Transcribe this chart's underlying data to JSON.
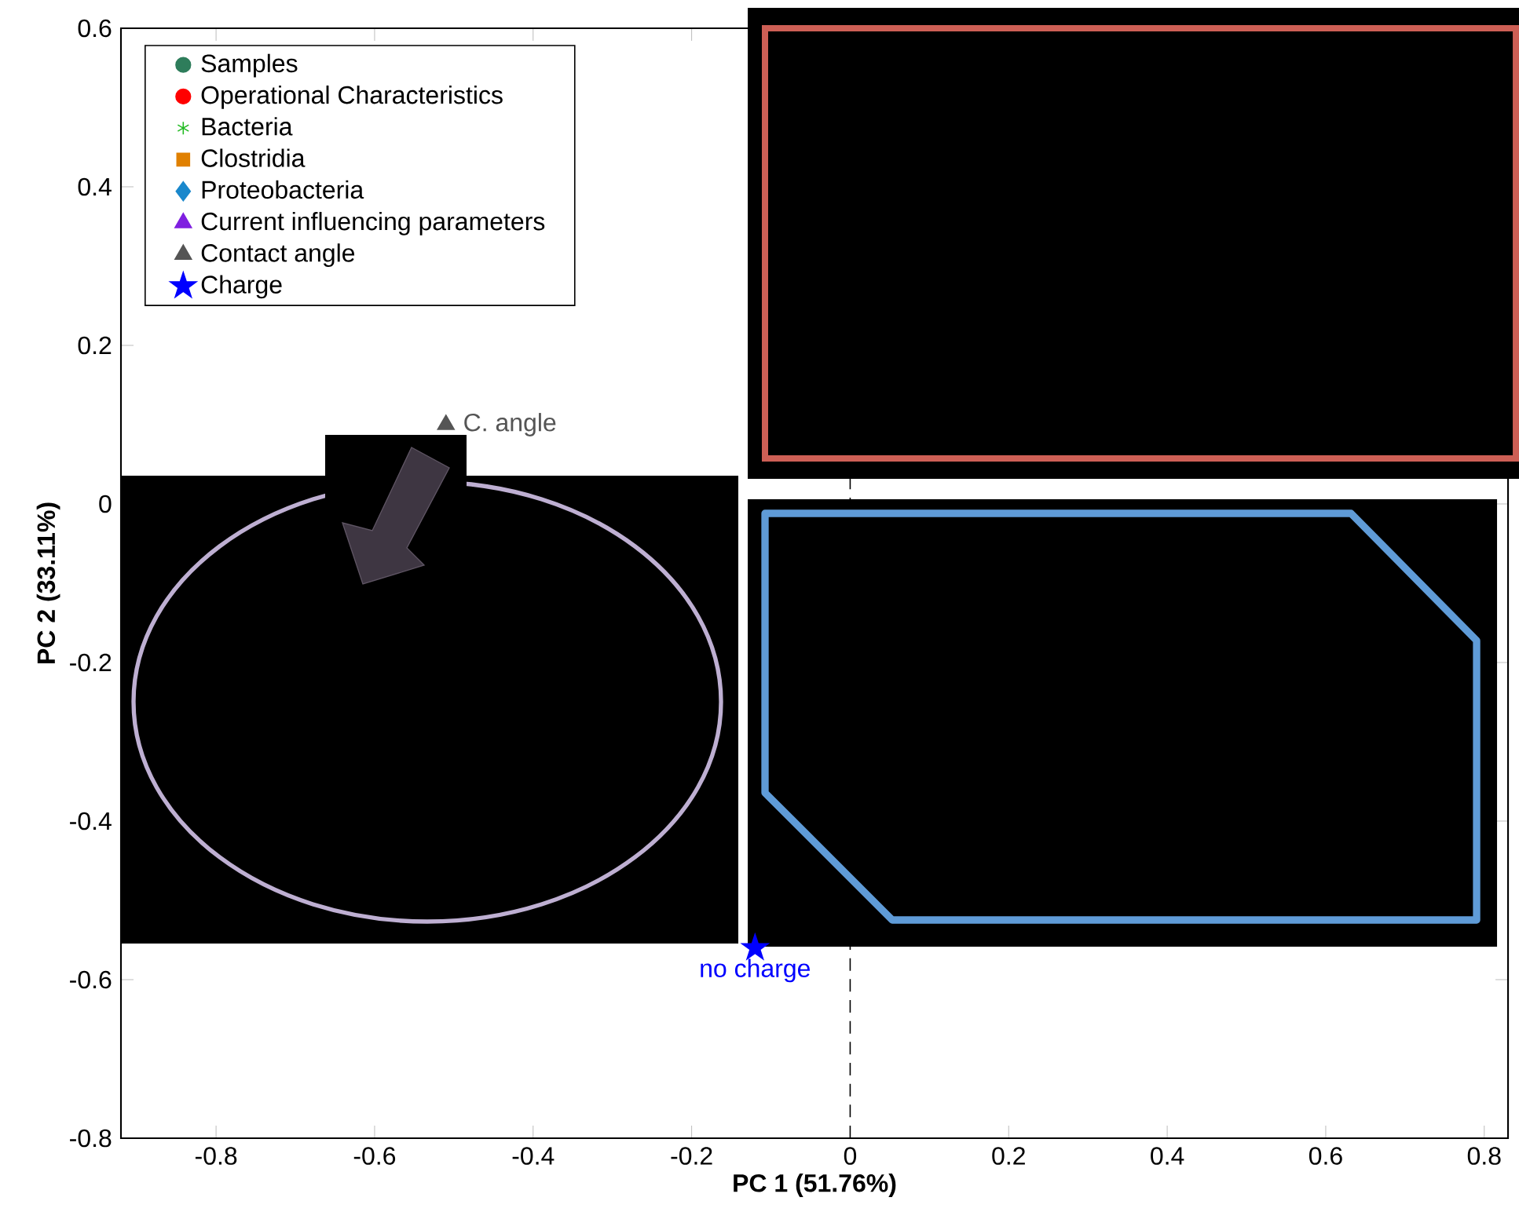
{
  "chart_data": {
    "type": "scatter",
    "xlabel": "PC 1 (51.76%)",
    "ylabel": "PC 2 (33.11%)",
    "xlim": [
      -0.92,
      0.83
    ],
    "ylim": [
      -0.8,
      0.6
    ],
    "xticks": [
      -0.8,
      -0.6,
      -0.4,
      -0.2,
      0,
      0.2,
      0.4,
      0.6,
      0.8
    ],
    "yticks": [
      -0.8,
      -0.6,
      -0.4,
      -0.2,
      0,
      0.2,
      0.4,
      0.6
    ],
    "legend": "top left",
    "ref_lines": [
      {
        "axis": "x",
        "value": 0,
        "color": "#000000",
        "line_style": "dashed"
      }
    ],
    "series": [
      {
        "name": "Samples",
        "color": "#2e7d5b",
        "marker": "circle"
      },
      {
        "name": "Operational Characteristics",
        "color": "#ff0000",
        "marker": "circle"
      },
      {
        "name": "Bacteria",
        "color": "#22bb22",
        "marker": "cross"
      },
      {
        "name": "Clostridia",
        "color": "#e08000",
        "marker": "square"
      },
      {
        "name": "Proteobacteria",
        "color": "#1a88cc",
        "marker": "diamond"
      },
      {
        "name": "Current influencing parameters",
        "color": "#7f1fe0",
        "marker": "triangle"
      },
      {
        "name": "Contact angle",
        "color": "#555555",
        "marker": "triangle",
        "x": [
          -0.51
        ],
        "values": [
          0.1
        ],
        "value_labels": [
          "C. angle"
        ]
      },
      {
        "name": "Charge",
        "color": "#0000ff",
        "marker": "star",
        "x": [
          -0.12
        ],
        "values": [
          -0.56
        ],
        "value_labels": [
          "no charge"
        ]
      }
    ]
  }
}
